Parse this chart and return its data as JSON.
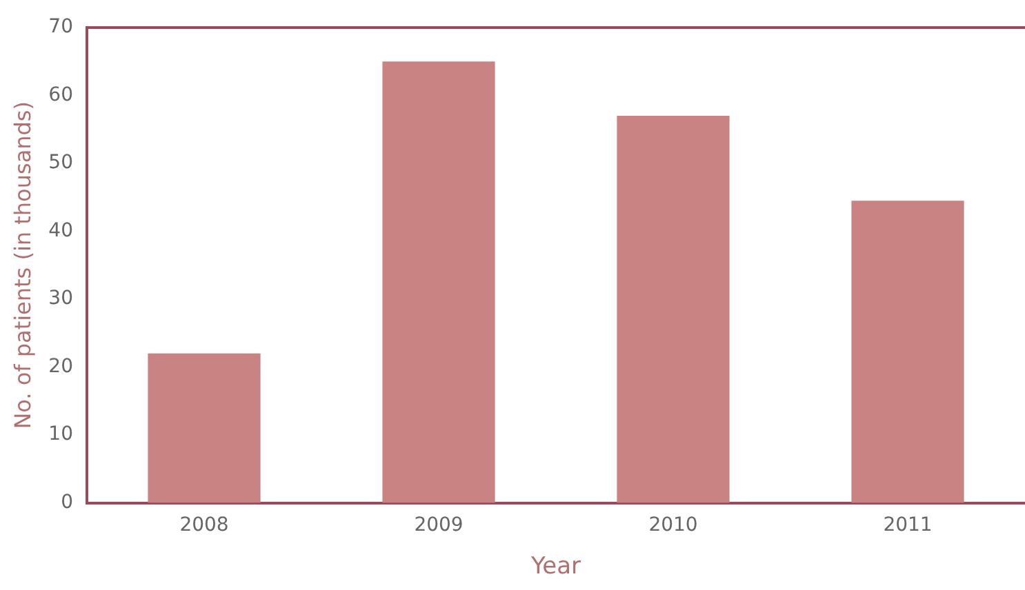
{
  "chart_data": {
    "type": "bar",
    "xlabel": "Year",
    "ylabel": "No. of patients (in thousands)",
    "categories": [
      "2008",
      "2009",
      "2010",
      "2011"
    ],
    "values": [
      22,
      65,
      57,
      44.5
    ],
    "color": "#c98383",
    "ylim": [
      0,
      70
    ],
    "yticks": [
      0,
      10,
      20,
      30,
      40,
      50,
      60,
      70
    ]
  }
}
